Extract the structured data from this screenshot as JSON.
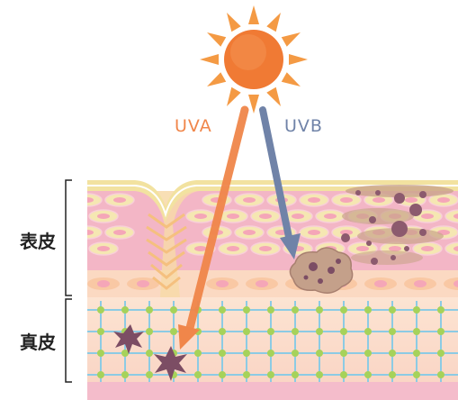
{
  "labels": {
    "uva": "UVA",
    "uvb": "UVB",
    "epidermis": "表皮",
    "dermis": "真皮"
  },
  "colors": {
    "uva": "#f0864a",
    "uvb": "#7083a8",
    "sun": "#f07a34",
    "sun_ray": "#f49a44",
    "skin_top": "#f2e2a0",
    "epidermis_bg": "#f3b6c6",
    "cell_fill": "#f5e7b2",
    "cell_core": "#f5a6b8",
    "dermis_bg": "#fbe0cf",
    "fiber": "#8ccbe4",
    "fiber_node": "#a6d25a",
    "pigment": "#8c5a6e",
    "damage": "#7c4d64",
    "bracket": "#222222"
  }
}
